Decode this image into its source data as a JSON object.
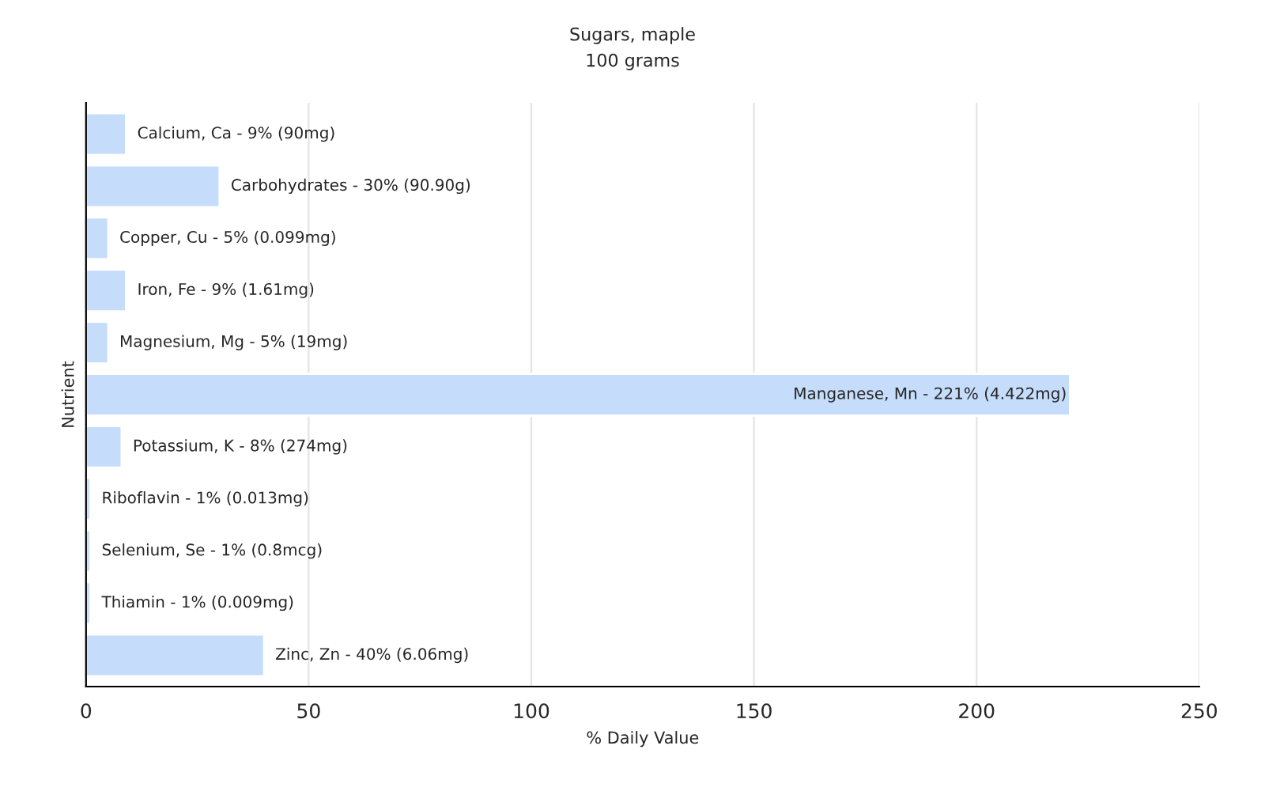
{
  "chart_data": {
    "type": "bar",
    "orientation": "horizontal",
    "title": "Sugars, maple",
    "subtitle": "100 grams",
    "xlabel": "% Daily Value",
    "ylabel": "Nutrient",
    "categories": [
      "Calcium, Ca - 9% (90mg)",
      "Carbohydrates - 30% (90.90g)",
      "Copper, Cu - 5% (0.099mg)",
      "Iron, Fe - 9% (1.61mg)",
      "Magnesium, Mg - 5% (19mg)",
      "Manganese, Mn - 221% (4.422mg)",
      "Potassium, K - 8% (274mg)",
      "Riboflavin - 1% (0.013mg)",
      "Selenium, Se - 1% (0.8mcg)",
      "Thiamin - 1% (0.009mg)",
      "Zinc, Zn - 40% (6.06mg)"
    ],
    "values": [
      9,
      30,
      5,
      9,
      5,
      221,
      8,
      1,
      1,
      1,
      40
    ],
    "color": "#c5dcfa",
    "xlim": [
      0,
      250
    ],
    "xticks": [
      0,
      50,
      100,
      150,
      200,
      250
    ],
    "grid": "x",
    "tick_labels": "x"
  }
}
